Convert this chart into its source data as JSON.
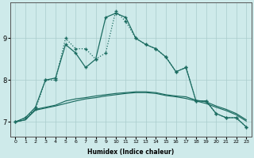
{
  "xlabel": "Humidex (Indice chaleur)",
  "x_ticks": [
    0,
    1,
    2,
    3,
    4,
    5,
    6,
    7,
    8,
    9,
    10,
    11,
    12,
    13,
    14,
    15,
    16,
    17,
    18,
    19,
    20,
    21,
    22,
    23
  ],
  "y_ticks": [
    7,
    8,
    9
  ],
  "xlim": [
    -0.5,
    23.5
  ],
  "ylim": [
    6.65,
    9.85
  ],
  "bg_color": "#ceeaea",
  "grid_color": "#aacccc",
  "line_color": "#1a6b60",
  "line1_x": [
    0,
    1,
    2,
    3,
    4,
    5,
    6,
    7,
    8,
    9,
    10,
    11,
    12,
    13,
    14,
    15,
    16,
    17,
    18,
    19,
    20,
    21,
    22,
    23
  ],
  "line1_y": [
    7.0,
    7.1,
    7.3,
    8.0,
    8.0,
    9.0,
    8.75,
    8.75,
    8.5,
    8.65,
    9.65,
    9.4,
    9.0,
    8.85,
    8.75,
    8.55,
    8.2,
    8.3,
    7.5,
    7.5,
    7.2,
    7.1,
    7.1,
    6.88
  ],
  "line2_x": [
    0,
    1,
    2,
    3,
    4,
    5,
    6,
    7,
    8,
    9,
    10,
    11,
    12,
    13,
    14,
    15,
    16,
    17,
    18,
    19,
    20,
    21,
    22,
    23
  ],
  "line2_y": [
    7.0,
    7.1,
    7.35,
    8.0,
    8.05,
    8.85,
    8.65,
    8.3,
    8.5,
    9.5,
    9.6,
    9.5,
    9.0,
    8.85,
    8.75,
    8.55,
    8.2,
    8.3,
    7.5,
    7.5,
    7.2,
    7.1,
    7.1,
    6.88
  ],
  "line3_x": [
    0,
    1,
    2,
    3,
    4,
    5,
    6,
    7,
    8,
    9,
    10,
    11,
    12,
    13,
    14,
    15,
    16,
    17,
    18,
    19,
    20,
    21,
    22,
    23
  ],
  "line3_y": [
    7.0,
    7.05,
    7.3,
    7.35,
    7.4,
    7.5,
    7.55,
    7.58,
    7.62,
    7.65,
    7.68,
    7.7,
    7.72,
    7.72,
    7.7,
    7.65,
    7.62,
    7.6,
    7.52,
    7.48,
    7.38,
    7.3,
    7.2,
    7.05
  ],
  "line4_x": [
    0,
    1,
    2,
    3,
    4,
    5,
    6,
    7,
    8,
    9,
    10,
    11,
    12,
    13,
    14,
    15,
    16,
    17,
    18,
    19,
    20,
    21,
    22,
    23
  ],
  "line4_y": [
    7.0,
    7.05,
    7.28,
    7.33,
    7.38,
    7.44,
    7.5,
    7.55,
    7.58,
    7.62,
    7.65,
    7.68,
    7.7,
    7.7,
    7.68,
    7.63,
    7.6,
    7.56,
    7.5,
    7.44,
    7.35,
    7.27,
    7.17,
    7.02
  ]
}
